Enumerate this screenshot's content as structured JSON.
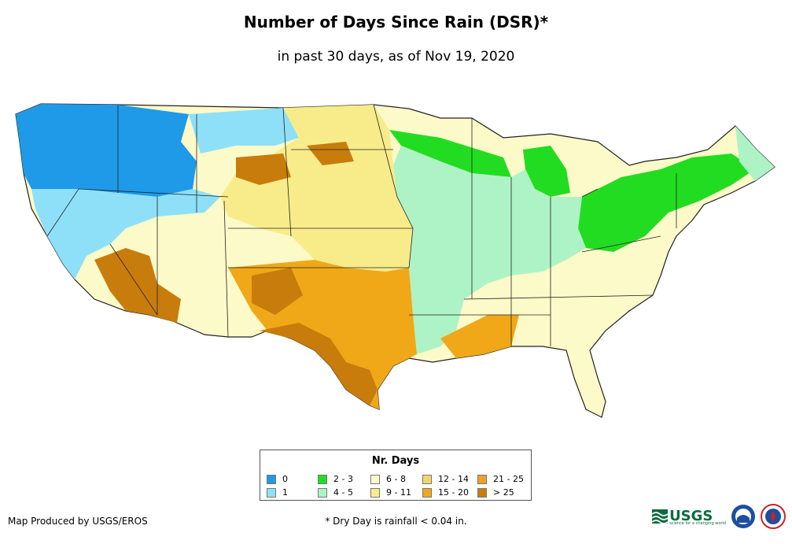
{
  "header": {
    "title": "Number of Days Since Rain (DSR)*",
    "subtitle": "in past 30 days, as of Nov 19, 2020"
  },
  "legend": {
    "title": "Nr. Days",
    "items": [
      {
        "label": "0",
        "color": "#1e9ae8"
      },
      {
        "label": "1",
        "color": "#8ee0f8"
      },
      {
        "label": "2 - 3",
        "color": "#22dc22"
      },
      {
        "label": "4 - 5",
        "color": "#aef3c6"
      },
      {
        "label": "6 - 8",
        "color": "#fcfac8"
      },
      {
        "label": "9 - 11",
        "color": "#f8ec8a"
      },
      {
        "label": "12 - 14",
        "color": "#f4d46a"
      },
      {
        "label": "15 - 20",
        "color": "#f0a818"
      },
      {
        "label": "21 - 25",
        "color": "#eca128"
      },
      {
        "label": "> 25",
        "color": "#c87c0c"
      }
    ]
  },
  "footer": {
    "credit": "Map Produced by USGS/EROS",
    "note": "* Dry Day is rainfall < 0.04 in."
  },
  "logos": {
    "usgs_text": "USGS",
    "usgs_tagline": "science for a changing world"
  },
  "map_colors": {
    "border": "#222222",
    "zero": "#1e9ae8",
    "one": "#8ee0f8",
    "two_three": "#22dc22",
    "four_five": "#aef3c6",
    "six_eight": "#fcfac8",
    "nine_eleven": "#f8ec8a",
    "twelve_fourteen": "#f4d46a",
    "fifteen_twenty": "#f0a818",
    "gt25": "#c87c0c"
  }
}
